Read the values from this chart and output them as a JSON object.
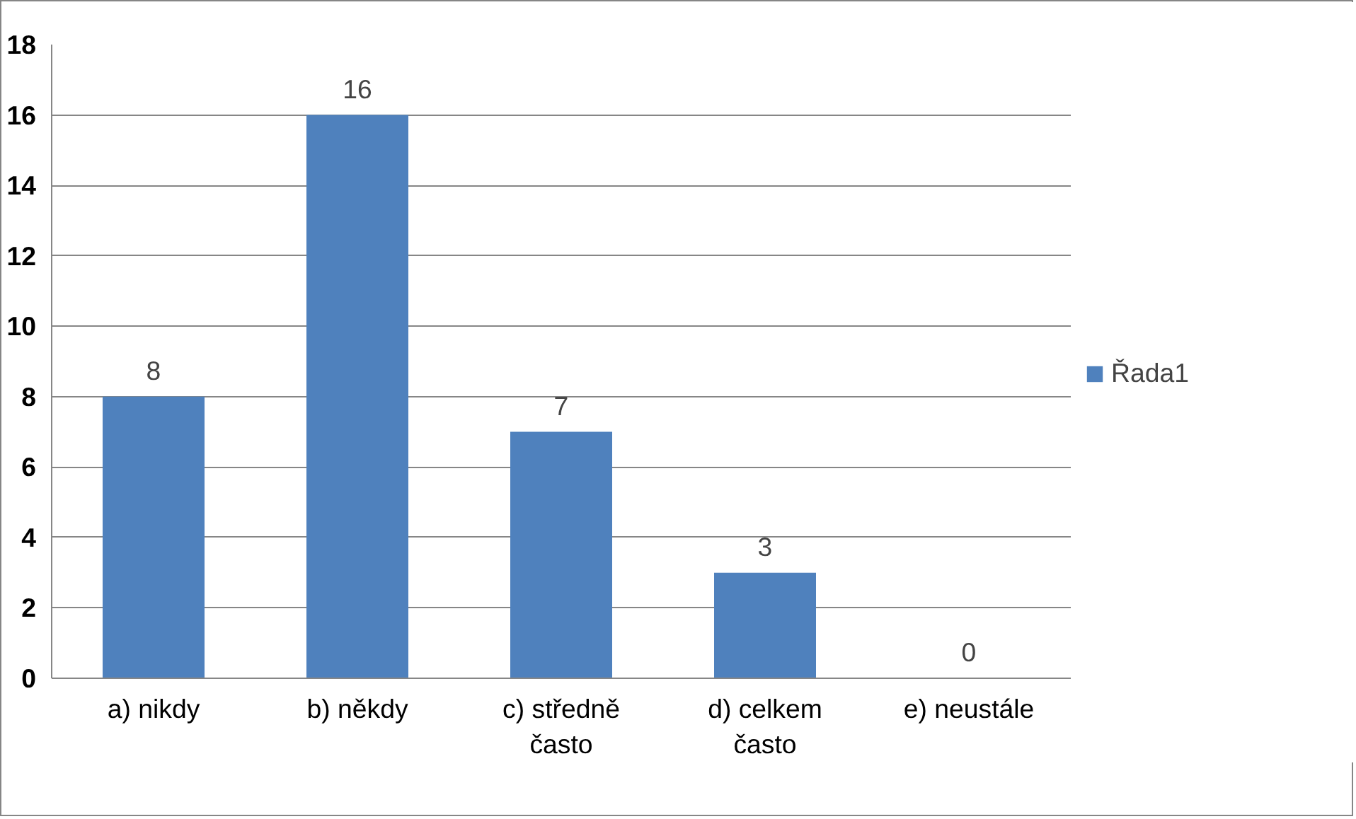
{
  "chart_data": {
    "type": "bar",
    "categories": [
      "a) nikdy",
      "b) někdy",
      "c) středně často",
      "d) celkem často",
      "e) neustále"
    ],
    "series": [
      {
        "name": "Řada1",
        "color": "#4f81bd",
        "values": [
          8,
          16,
          7,
          3,
          0
        ]
      }
    ],
    "ylim": [
      0,
      18
    ],
    "yticks": [
      0,
      2,
      4,
      6,
      8,
      10,
      12,
      14,
      16,
      18
    ],
    "grid": "y",
    "legend": "right",
    "data_labels": true
  }
}
